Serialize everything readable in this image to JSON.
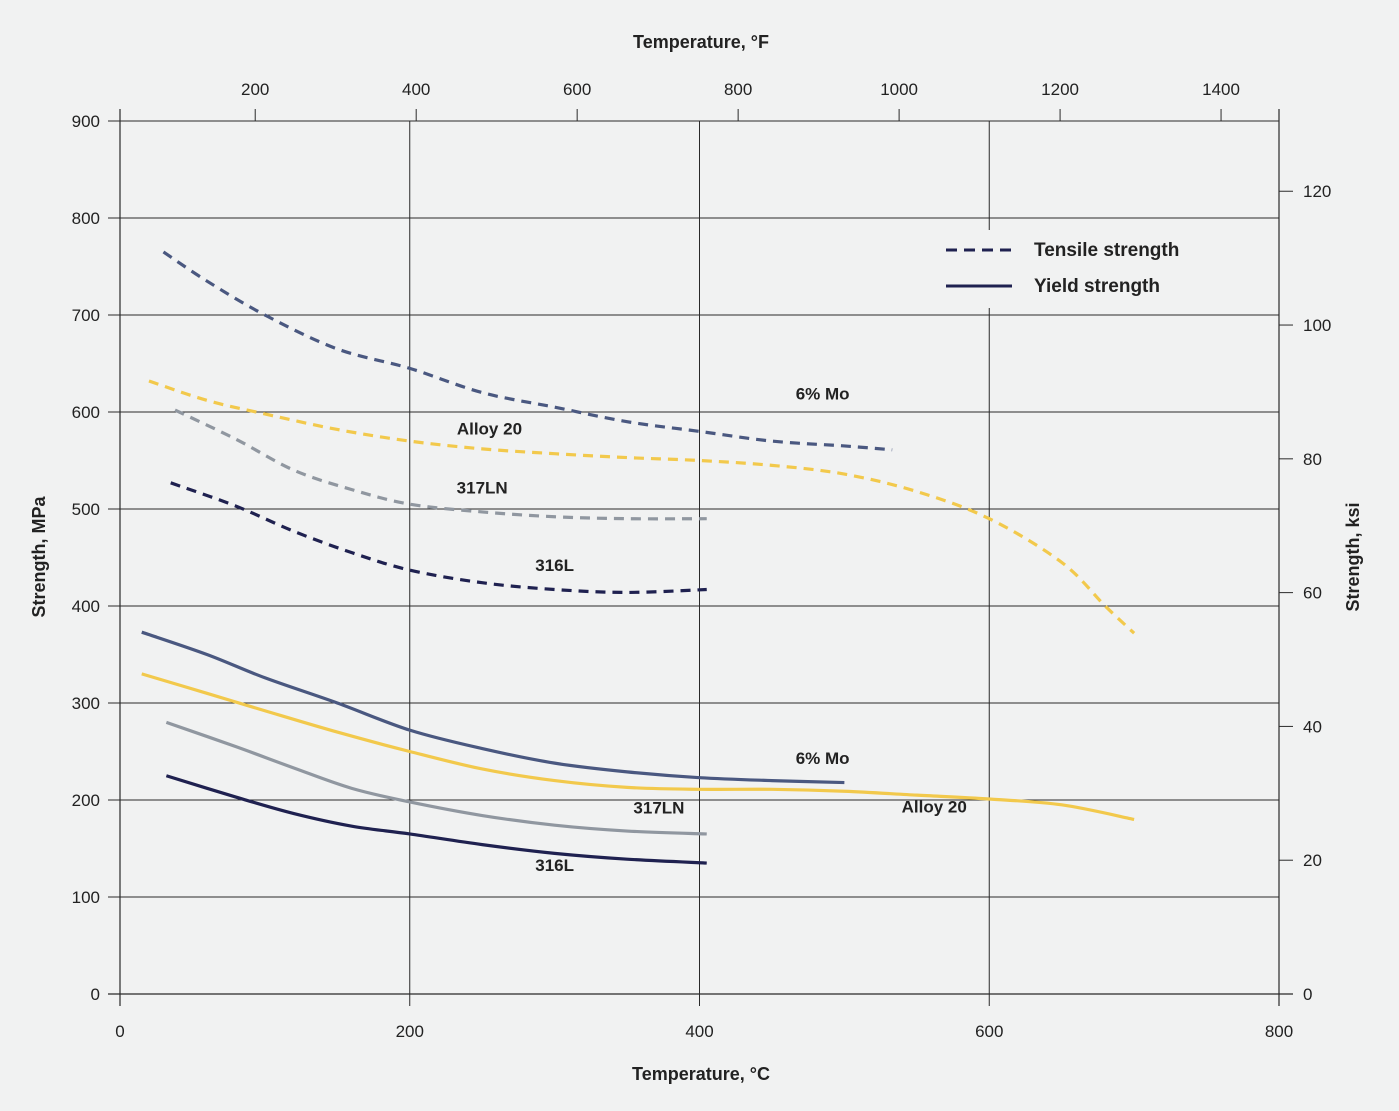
{
  "chart_data": {
    "type": "line",
    "title": "",
    "xlabel": "Temperature, °C",
    "x2label": "Temperature, °F",
    "ylabel": "Strength, MPa",
    "y2label": "Strength, ksi",
    "xlim": [
      0,
      800
    ],
    "ylim": [
      0,
      900
    ],
    "x2lim": [
      32,
      1472
    ],
    "y2lim": [
      0,
      130.5
    ],
    "x_ticks": [
      0,
      200,
      400,
      600,
      800
    ],
    "y_ticks": [
      0,
      100,
      200,
      300,
      400,
      500,
      600,
      700,
      800,
      900
    ],
    "x2_ticks": [
      200,
      400,
      600,
      800,
      1000,
      1200,
      1400
    ],
    "y2_ticks": [
      0,
      20,
      40,
      60,
      80,
      100,
      120
    ],
    "grid": true,
    "legend_placement": "top-right",
    "legend": [
      {
        "label": "Tensile strength",
        "style": "dashed"
      },
      {
        "label": "Yield strength",
        "style": "solid"
      }
    ],
    "colors": {
      "six_mo": "#4a5880",
      "alloy20": "#f2c94c",
      "s317ln": "#9097a0",
      "s316l": "#1f2150",
      "grid": "#2a2a2a",
      "legend": "#1f2150"
    },
    "series": [
      {
        "name": "6% Mo",
        "kind": "tensile",
        "color_key": "six_mo",
        "points": [
          [
            30,
            765
          ],
          [
            60,
            735
          ],
          [
            100,
            700
          ],
          [
            150,
            665
          ],
          [
            200,
            645
          ],
          [
            250,
            620
          ],
          [
            300,
            605
          ],
          [
            350,
            590
          ],
          [
            400,
            580
          ],
          [
            450,
            570
          ],
          [
            500,
            565
          ],
          [
            533,
            561
          ]
        ]
      },
      {
        "name": "Alloy 20",
        "kind": "tensile",
        "color_key": "alloy20",
        "points": [
          [
            20,
            632
          ],
          [
            60,
            612
          ],
          [
            100,
            598
          ],
          [
            150,
            582
          ],
          [
            200,
            570
          ],
          [
            250,
            562
          ],
          [
            300,
            557
          ],
          [
            350,
            553
          ],
          [
            400,
            550
          ],
          [
            450,
            545
          ],
          [
            500,
            536
          ],
          [
            550,
            518
          ],
          [
            600,
            490
          ],
          [
            650,
            445
          ],
          [
            680,
            400
          ],
          [
            700,
            372
          ]
        ]
      },
      {
        "name": "317LN",
        "kind": "tensile",
        "color_key": "s317ln",
        "points": [
          [
            38,
            602
          ],
          [
            80,
            572
          ],
          [
            120,
            540
          ],
          [
            160,
            520
          ],
          [
            200,
            505
          ],
          [
            250,
            497
          ],
          [
            300,
            492
          ],
          [
            350,
            490
          ],
          [
            405,
            490
          ]
        ]
      },
      {
        "name": "316L",
        "kind": "tensile",
        "color_key": "s316l",
        "points": [
          [
            35,
            527
          ],
          [
            80,
            503
          ],
          [
            120,
            477
          ],
          [
            160,
            455
          ],
          [
            200,
            437
          ],
          [
            250,
            424
          ],
          [
            300,
            417
          ],
          [
            350,
            414
          ],
          [
            405,
            417
          ]
        ]
      },
      {
        "name": "6% Mo",
        "kind": "yield",
        "color_key": "six_mo",
        "points": [
          [
            15,
            373
          ],
          [
            60,
            350
          ],
          [
            100,
            326
          ],
          [
            150,
            300
          ],
          [
            200,
            272
          ],
          [
            250,
            253
          ],
          [
            300,
            238
          ],
          [
            350,
            229
          ],
          [
            400,
            223
          ],
          [
            450,
            220
          ],
          [
            500,
            218
          ]
        ]
      },
      {
        "name": "Alloy 20",
        "kind": "yield",
        "color_key": "alloy20",
        "points": [
          [
            15,
            330
          ],
          [
            60,
            310
          ],
          [
            100,
            292
          ],
          [
            150,
            270
          ],
          [
            200,
            250
          ],
          [
            250,
            232
          ],
          [
            300,
            220
          ],
          [
            350,
            213
          ],
          [
            400,
            211
          ],
          [
            450,
            211
          ],
          [
            500,
            209
          ],
          [
            550,
            205
          ],
          [
            600,
            201
          ],
          [
            650,
            195
          ],
          [
            700,
            180
          ]
        ]
      },
      {
        "name": "317LN",
        "kind": "yield",
        "color_key": "s317ln",
        "points": [
          [
            32,
            280
          ],
          [
            80,
            255
          ],
          [
            120,
            233
          ],
          [
            160,
            212
          ],
          [
            200,
            198
          ],
          [
            250,
            184
          ],
          [
            300,
            174
          ],
          [
            350,
            168
          ],
          [
            405,
            165
          ]
        ]
      },
      {
        "name": "316L",
        "kind": "yield",
        "color_key": "s316l",
        "points": [
          [
            32,
            225
          ],
          [
            80,
            203
          ],
          [
            120,
            186
          ],
          [
            160,
            173
          ],
          [
            200,
            165
          ],
          [
            250,
            154
          ],
          [
            300,
            145
          ],
          [
            350,
            139
          ],
          [
            405,
            135
          ]
        ]
      }
    ],
    "annotations": [
      {
        "text": "6% Mo",
        "x": 485,
        "y": 613
      },
      {
        "text": "Alloy 20",
        "x": 255,
        "y": 577
      },
      {
        "text": "317LN",
        "x": 250,
        "y": 516
      },
      {
        "text": "316L",
        "x": 300,
        "y": 436
      },
      {
        "text": "6% Mo",
        "x": 485,
        "y": 237
      },
      {
        "text": "317LN",
        "x": 372,
        "y": 186
      },
      {
        "text": "316L",
        "x": 300,
        "y": 127
      },
      {
        "text": "Alloy 20",
        "x": 562,
        "y": 187
      }
    ]
  }
}
